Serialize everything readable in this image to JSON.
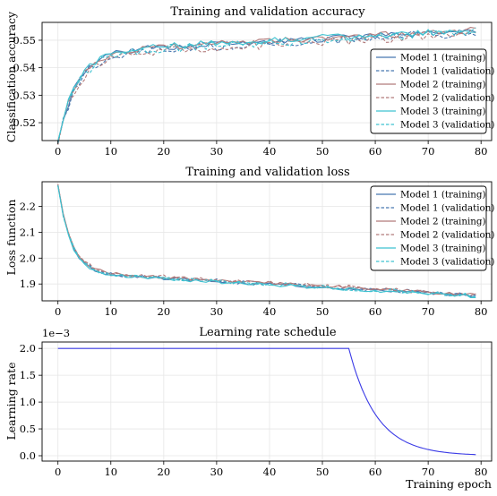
{
  "chart_data": [
    {
      "type": "line",
      "title": "Training and validation accuracy",
      "xlabel": "",
      "ylabel": "Classification accuracy",
      "xlim": [
        -3,
        82
      ],
      "ylim": [
        0.5135,
        0.5565
      ],
      "xticks": [
        0,
        10,
        20,
        30,
        40,
        50,
        60,
        70,
        80
      ],
      "yticks": [
        0.52,
        0.53,
        0.54,
        0.55
      ],
      "ytick_labels": [
        "0.52",
        "0.53",
        "0.54",
        "0.55"
      ],
      "grid": true,
      "legend": "lower-right",
      "curve": {
        "start": 0.513,
        "plateau": 0.5455,
        "rate": 0.28,
        "slope": 0.0001,
        "noise": 0.0012
      },
      "series": [
        {
          "name": "Model 1 (training)",
          "color": "#4878b0",
          "dash": false,
          "offset": 0.0,
          "seed": 1
        },
        {
          "name": "Model 1 (validation)",
          "color": "#4878b0",
          "dash": true,
          "offset": -0.0006,
          "seed": 2
        },
        {
          "name": "Model 2 (training)",
          "color": "#b27a7a",
          "dash": false,
          "offset": 0.0002,
          "seed": 3
        },
        {
          "name": "Model 2 (validation)",
          "color": "#b27a7a",
          "dash": true,
          "offset": -0.001,
          "seed": 4
        },
        {
          "name": "Model 3 (training)",
          "color": "#3fc2d0",
          "dash": false,
          "offset": 0.0004,
          "seed": 5
        },
        {
          "name": "Model 3 (validation)",
          "color": "#3fc2d0",
          "dash": true,
          "offset": -0.0004,
          "seed": 6
        }
      ]
    },
    {
      "type": "line",
      "title": "Training and validation loss",
      "xlabel": "",
      "ylabel": "Loss function",
      "xlim": [
        -3,
        82
      ],
      "ylim": [
        1.835,
        2.295
      ],
      "xticks": [
        0,
        10,
        20,
        30,
        40,
        50,
        60,
        70,
        80
      ],
      "yticks": [
        1.9,
        2.0,
        2.1,
        2.2
      ],
      "ytick_labels": [
        "1.9",
        "2.0",
        "2.1",
        "2.2"
      ],
      "grid": true,
      "legend": "top-right",
      "curve": {
        "start": 2.28,
        "plateau": 1.945,
        "rate": 0.42,
        "slope": -0.00115,
        "noise": 0.006
      },
      "series": [
        {
          "name": "Model 1 (training)",
          "color": "#4878b0",
          "dash": false,
          "offset": 0.0,
          "seed": 11
        },
        {
          "name": "Model 1 (validation)",
          "color": "#4878b0",
          "dash": true,
          "offset": 0.002,
          "seed": 12
        },
        {
          "name": "Model 2 (training)",
          "color": "#b27a7a",
          "dash": false,
          "offset": 0.004,
          "seed": 13
        },
        {
          "name": "Model 2 (validation)",
          "color": "#b27a7a",
          "dash": true,
          "offset": 0.006,
          "seed": 14
        },
        {
          "name": "Model 3 (training)",
          "color": "#3fc2d0",
          "dash": false,
          "offset": -0.002,
          "seed": 15
        },
        {
          "name": "Model 3 (validation)",
          "color": "#3fc2d0",
          "dash": true,
          "offset": 0.001,
          "seed": 16
        }
      ]
    },
    {
      "type": "line",
      "title": "Learning rate schedule",
      "xlabel": "Training epoch",
      "ylabel": "Learning rate",
      "scale_label": "1e−3",
      "xlim": [
        -3,
        82
      ],
      "ylim": [
        -0.1,
        2.12
      ],
      "xticks": [
        0,
        10,
        20,
        30,
        40,
        50,
        60,
        70,
        80
      ],
      "yticks": [
        0.0,
        0.5,
        1.0,
        1.5,
        2.0
      ],
      "ytick_labels": [
        "0.0",
        "0.5",
        "1.0",
        "1.5",
        "2.0"
      ],
      "grid": true,
      "series": [
        {
          "name": "",
          "color": "#3a3ae6",
          "constant": 2.0,
          "decay_start": 55,
          "decay_rate": 0.19,
          "floor": 0.0,
          "x_end": 79
        }
      ]
    }
  ]
}
